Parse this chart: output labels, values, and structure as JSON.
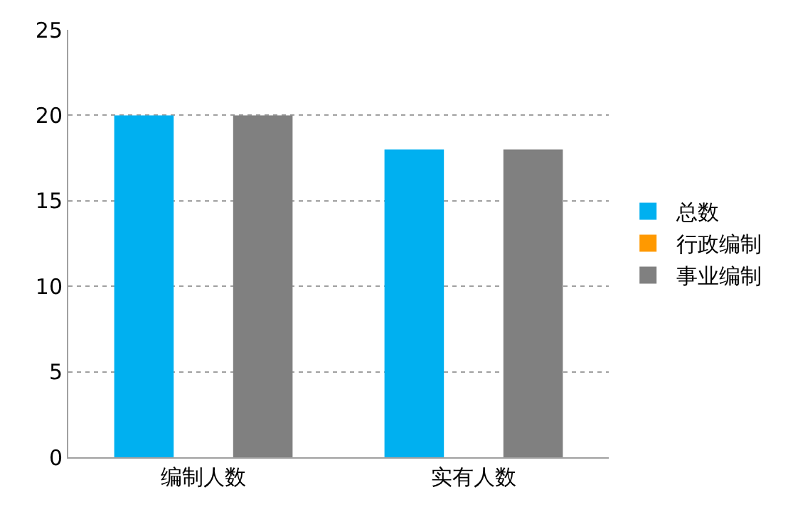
{
  "chart_data": {
    "type": "bar",
    "categories": [
      "编制人数",
      "实有人数"
    ],
    "series": [
      {
        "name": "总数",
        "color": "#00b0f0",
        "values": [
          20,
          18
        ]
      },
      {
        "name": "行政编制",
        "color": "#ff9900",
        "values": [
          0,
          0
        ]
      },
      {
        "name": "事业编制",
        "color": "#808080",
        "values": [
          20,
          18
        ]
      }
    ],
    "ylim": [
      0,
      25
    ],
    "yticks": [
      0,
      5,
      10,
      15,
      20,
      25
    ],
    "grid": "y",
    "legend": "right"
  }
}
